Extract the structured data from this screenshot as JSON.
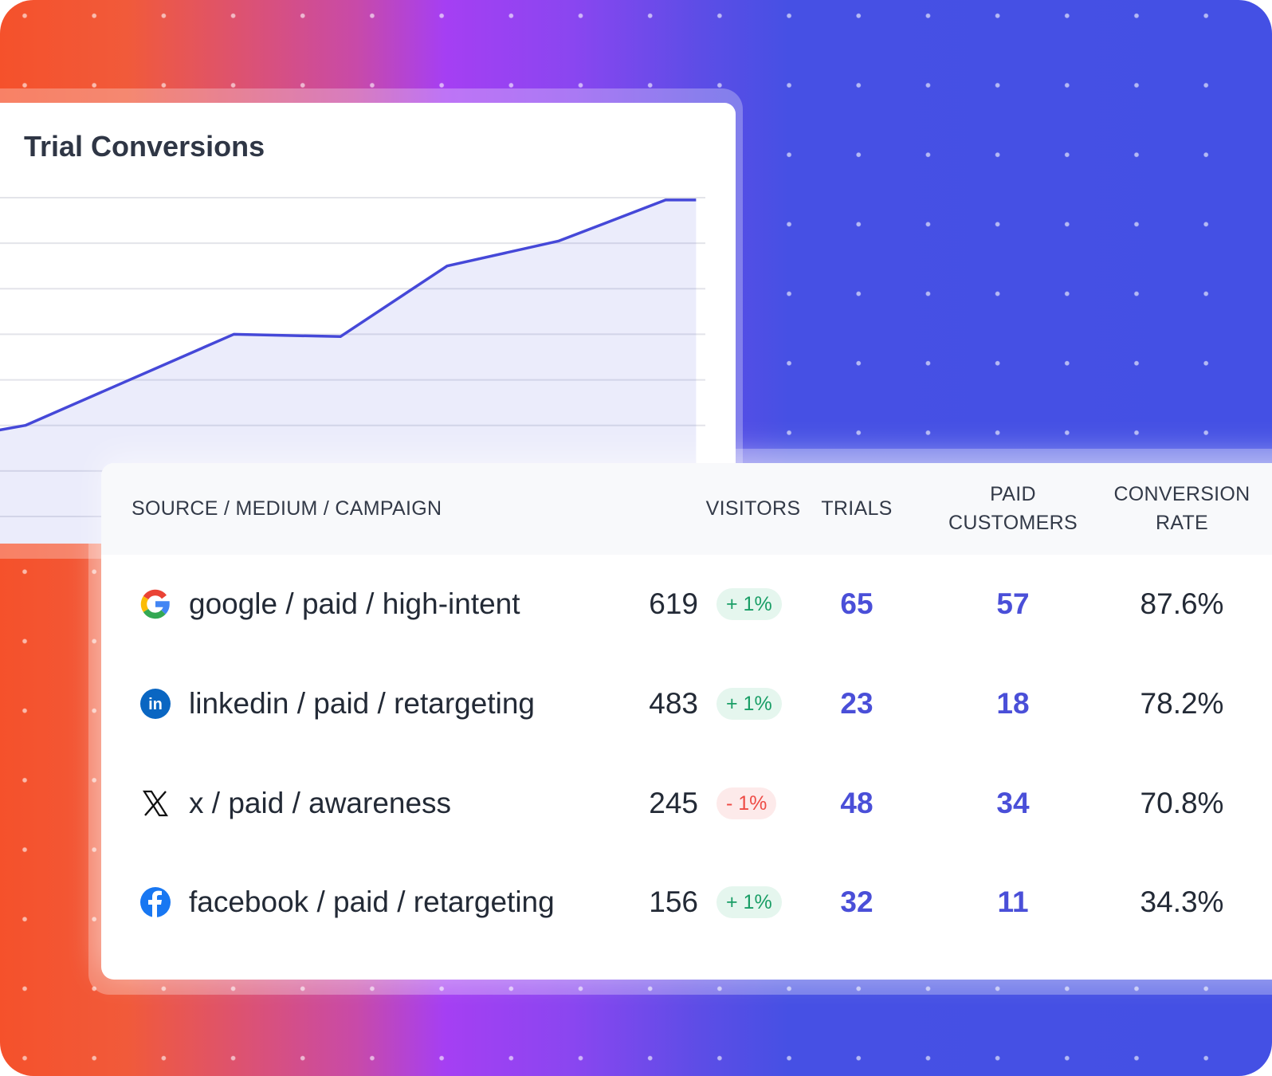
{
  "colors": {
    "accent": "#4a4fd8",
    "positive": "#1a9e66",
    "negative": "#ee4b45",
    "background_left": "#f5512b",
    "background_mid": "#a53ff3",
    "background_right": "#4450e4"
  },
  "chart_data": {
    "type": "area",
    "title": "Trial Conversions",
    "xlabel": "",
    "ylabel": "",
    "grid": true,
    "x": [
      0,
      0.25,
      2.3,
      3.35,
      4.4,
      5.5,
      6.55,
      6.85
    ],
    "y": [
      1.9,
      2.0,
      4.0,
      3.95,
      5.5,
      6.05,
      6.95,
      6.95
    ],
    "ylim": [
      0,
      7
    ]
  },
  "table": {
    "headers": {
      "source": "SOURCE / MEDIUM / CAMPAIGN",
      "visitors": "VISITORS",
      "trials": "TRIALS",
      "paid_1": "PAID",
      "paid_2": "CUSTOMERS",
      "rate_1": "CONVERSION",
      "rate_2": "RATE"
    },
    "rows": [
      {
        "icon": "google-icon",
        "source": "google / paid / high-intent",
        "visitors": "619",
        "change": "+ 1%",
        "trend": "up",
        "trials": "65",
        "paid": "57",
        "rate": "87.6%"
      },
      {
        "icon": "linkedin-icon",
        "source": "linkedin / paid / retargeting",
        "visitors": "483",
        "change": "+ 1%",
        "trend": "up",
        "trials": "23",
        "paid": "18",
        "rate": "78.2%"
      },
      {
        "icon": "x-icon",
        "source": "x / paid / awareness",
        "visitors": "245",
        "change": "- 1%",
        "trend": "down",
        "trials": "48",
        "paid": "34",
        "rate": "70.8%"
      },
      {
        "icon": "facebook-icon",
        "source": "facebook / paid / retargeting",
        "visitors": "156",
        "change": "+ 1%",
        "trend": "up",
        "trials": "32",
        "paid": "11",
        "rate": "34.3%"
      }
    ]
  }
}
